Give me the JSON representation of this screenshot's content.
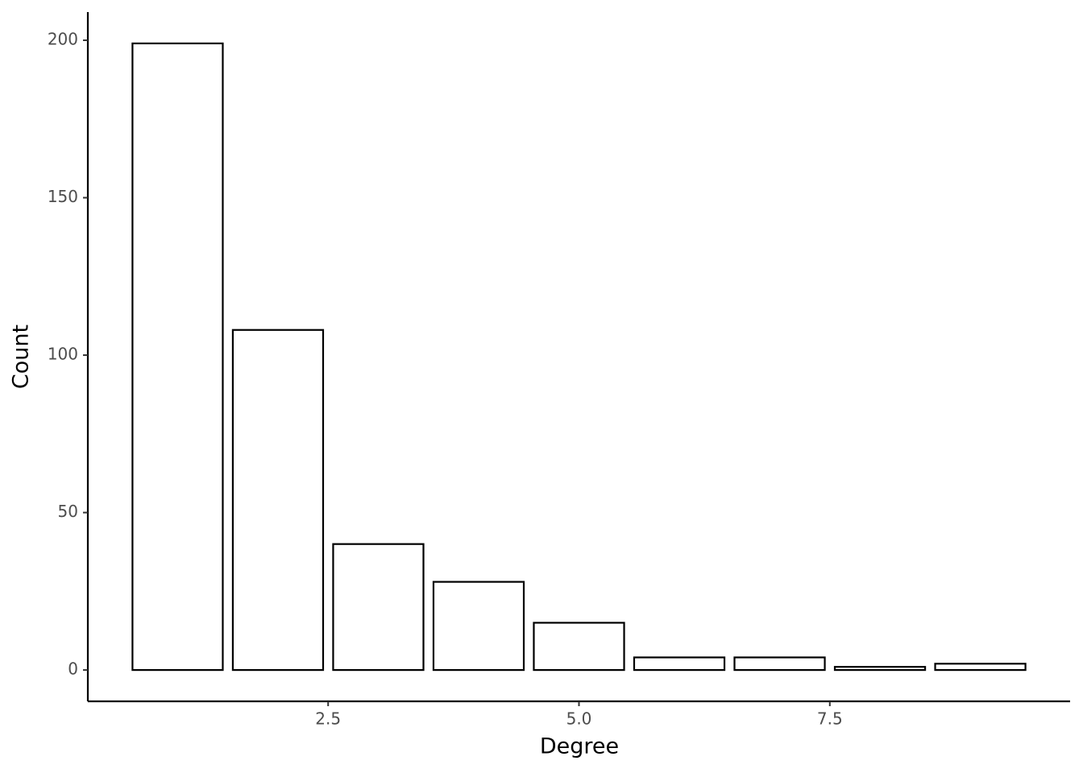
{
  "chart_data": {
    "type": "bar",
    "x_label": "Degree",
    "y_label": "Count",
    "x": [
      1,
      2,
      3,
      4,
      5,
      6,
      7,
      8,
      9
    ],
    "values": [
      199,
      108,
      40,
      28,
      15,
      4,
      4,
      1,
      2
    ],
    "color": "#ffffff",
    "edge_color": "#000000",
    "xlim": [
      0.105,
      9.895
    ],
    "xticks": [
      2.5,
      {
        "value": 5,
        "label": "5.0"
      },
      7.5
    ],
    "ylim": [
      -9.95,
      208.95
    ],
    "yticks": [
      0,
      50,
      100,
      150,
      200
    ],
    "grid": false
  }
}
